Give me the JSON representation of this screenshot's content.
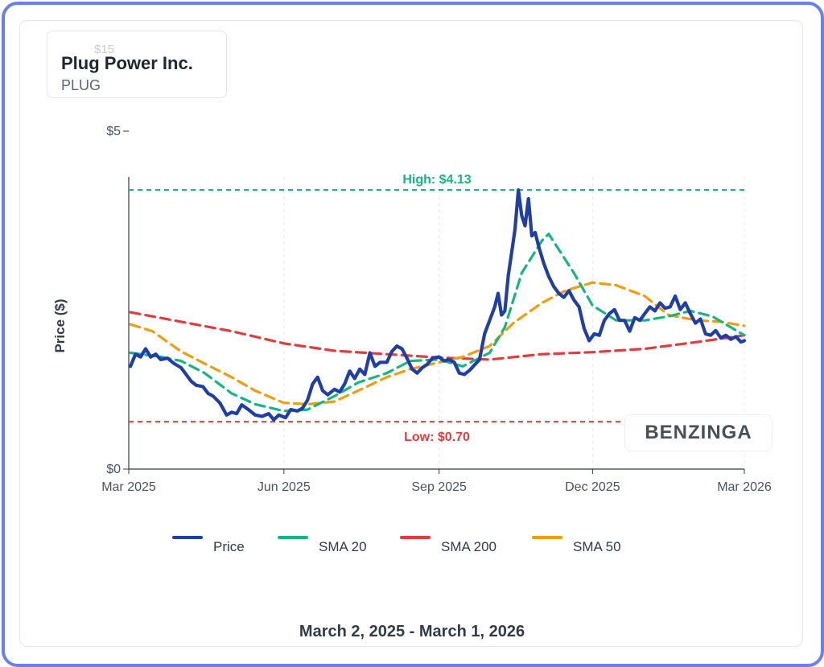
{
  "header": {
    "company": "Plug Power Inc.",
    "ticker": "PLUG",
    "ghost_label": "$15"
  },
  "watermark": "BENZINGA",
  "date_range": "March 2, 2025 - March 1, 2026",
  "colors": {
    "price": "#1f3ea8",
    "sma20": "#14b87e",
    "sma200": "#e43c3c",
    "sma50": "#f29d0c",
    "high": "#14b87e",
    "low": "#e43c3c",
    "frame": "#6b7ff0"
  },
  "chart_data": {
    "type": "line",
    "ylabel": "Price ($)",
    "ylim": [
      0,
      5
    ],
    "y_ticks": [
      {
        "value": 0,
        "label": "$0"
      },
      {
        "value": 5,
        "label": "$5"
      }
    ],
    "x_ticks": [
      {
        "date": "2025-03-01",
        "label": "Mar 2025"
      },
      {
        "date": "2025-06-01",
        "label": "Jun 2025"
      },
      {
        "date": "2025-09-01",
        "label": "Sep 2025"
      },
      {
        "date": "2025-12-01",
        "label": "Dec 2025"
      },
      {
        "date": "2026-03-01",
        "label": "Mar 2026"
      }
    ],
    "grid": true,
    "legend_position": "bottom",
    "annotations": {
      "high": {
        "value": 4.13,
        "label": "High: $4.13"
      },
      "low": {
        "value": 0.7,
        "label": "Low: $0.70"
      }
    },
    "series": [
      {
        "name": "Price",
        "key": "price",
        "dashed": false,
        "points": [
          [
            "2025-03-02",
            1.52
          ],
          [
            "2025-03-05",
            1.7
          ],
          [
            "2025-03-08",
            1.66
          ],
          [
            "2025-03-11",
            1.78
          ],
          [
            "2025-03-14",
            1.66
          ],
          [
            "2025-03-17",
            1.7
          ],
          [
            "2025-03-20",
            1.62
          ],
          [
            "2025-03-24",
            1.64
          ],
          [
            "2025-03-28",
            1.56
          ],
          [
            "2025-04-01",
            1.5
          ],
          [
            "2025-04-04",
            1.4
          ],
          [
            "2025-04-07",
            1.3
          ],
          [
            "2025-04-10",
            1.24
          ],
          [
            "2025-04-14",
            1.22
          ],
          [
            "2025-04-17",
            1.12
          ],
          [
            "2025-04-20",
            1.08
          ],
          [
            "2025-04-24",
            0.98
          ],
          [
            "2025-04-28",
            0.8
          ],
          [
            "2025-05-01",
            0.84
          ],
          [
            "2025-05-04",
            0.82
          ],
          [
            "2025-05-07",
            0.95
          ],
          [
            "2025-05-11",
            0.88
          ],
          [
            "2025-05-15",
            0.8
          ],
          [
            "2025-05-19",
            0.78
          ],
          [
            "2025-05-23",
            0.82
          ],
          [
            "2025-05-26",
            0.73
          ],
          [
            "2025-05-29",
            0.8
          ],
          [
            "2025-06-02",
            0.76
          ],
          [
            "2025-06-05",
            0.88
          ],
          [
            "2025-06-09",
            0.86
          ],
          [
            "2025-06-12",
            0.9
          ],
          [
            "2025-06-15",
            1.02
          ],
          [
            "2025-06-18",
            1.26
          ],
          [
            "2025-06-21",
            1.36
          ],
          [
            "2025-06-24",
            1.16
          ],
          [
            "2025-06-27",
            1.1
          ],
          [
            "2025-07-01",
            1.18
          ],
          [
            "2025-07-04",
            1.14
          ],
          [
            "2025-07-07",
            1.26
          ],
          [
            "2025-07-10",
            1.45
          ],
          [
            "2025-07-13",
            1.34
          ],
          [
            "2025-07-16",
            1.48
          ],
          [
            "2025-07-19",
            1.4
          ],
          [
            "2025-07-22",
            1.72
          ],
          [
            "2025-07-25",
            1.52
          ],
          [
            "2025-07-28",
            1.58
          ],
          [
            "2025-08-01",
            1.58
          ],
          [
            "2025-08-04",
            1.74
          ],
          [
            "2025-08-07",
            1.82
          ],
          [
            "2025-08-10",
            1.78
          ],
          [
            "2025-08-13",
            1.64
          ],
          [
            "2025-08-16",
            1.48
          ],
          [
            "2025-08-19",
            1.42
          ],
          [
            "2025-08-22",
            1.5
          ],
          [
            "2025-08-25",
            1.55
          ],
          [
            "2025-08-28",
            1.64
          ],
          [
            "2025-09-01",
            1.66
          ],
          [
            "2025-09-04",
            1.6
          ],
          [
            "2025-09-07",
            1.62
          ],
          [
            "2025-09-10",
            1.58
          ],
          [
            "2025-09-13",
            1.42
          ],
          [
            "2025-09-16",
            1.4
          ],
          [
            "2025-09-19",
            1.46
          ],
          [
            "2025-09-22",
            1.54
          ],
          [
            "2025-09-25",
            1.62
          ],
          [
            "2025-09-28",
            2.0
          ],
          [
            "2025-10-01",
            2.2
          ],
          [
            "2025-10-04",
            2.4
          ],
          [
            "2025-10-06",
            2.6
          ],
          [
            "2025-10-08",
            2.28
          ],
          [
            "2025-10-10",
            2.34
          ],
          [
            "2025-10-12",
            2.86
          ],
          [
            "2025-10-14",
            3.2
          ],
          [
            "2025-10-16",
            3.55
          ],
          [
            "2025-10-18",
            4.13
          ],
          [
            "2025-10-20",
            3.75
          ],
          [
            "2025-10-22",
            3.6
          ],
          [
            "2025-10-24",
            4.0
          ],
          [
            "2025-10-26",
            3.45
          ],
          [
            "2025-10-28",
            3.5
          ],
          [
            "2025-10-30",
            3.3
          ],
          [
            "2025-11-02",
            3.05
          ],
          [
            "2025-11-05",
            2.85
          ],
          [
            "2025-11-08",
            2.7
          ],
          [
            "2025-11-11",
            2.6
          ],
          [
            "2025-11-14",
            2.54
          ],
          [
            "2025-11-17",
            2.64
          ],
          [
            "2025-11-20",
            2.5
          ],
          [
            "2025-11-23",
            2.4
          ],
          [
            "2025-11-26",
            2.08
          ],
          [
            "2025-11-29",
            1.9
          ],
          [
            "2025-12-02",
            2.0
          ],
          [
            "2025-12-05",
            1.98
          ],
          [
            "2025-12-08",
            2.2
          ],
          [
            "2025-12-11",
            2.3
          ],
          [
            "2025-12-14",
            2.36
          ],
          [
            "2025-12-17",
            2.2
          ],
          [
            "2025-12-20",
            2.2
          ],
          [
            "2025-12-23",
            2.04
          ],
          [
            "2025-12-26",
            2.24
          ],
          [
            "2025-12-29",
            2.2
          ],
          [
            "2026-01-01",
            2.3
          ],
          [
            "2026-01-04",
            2.4
          ],
          [
            "2026-01-07",
            2.34
          ],
          [
            "2026-01-10",
            2.46
          ],
          [
            "2026-01-13",
            2.38
          ],
          [
            "2026-01-16",
            2.4
          ],
          [
            "2026-01-19",
            2.56
          ],
          [
            "2026-01-22",
            2.36
          ],
          [
            "2026-01-25",
            2.46
          ],
          [
            "2026-01-28",
            2.3
          ],
          [
            "2026-01-31",
            2.16
          ],
          [
            "2026-02-03",
            2.22
          ],
          [
            "2026-02-06",
            2.0
          ],
          [
            "2026-02-09",
            1.98
          ],
          [
            "2026-02-12",
            2.05
          ],
          [
            "2026-02-15",
            1.94
          ],
          [
            "2026-02-18",
            1.98
          ],
          [
            "2026-02-21",
            1.92
          ],
          [
            "2026-02-24",
            1.96
          ],
          [
            "2026-02-27",
            1.88
          ],
          [
            "2026-03-01",
            1.9
          ]
        ]
      },
      {
        "name": "SMA 20",
        "key": "sma20",
        "dashed": true,
        "points": [
          [
            "2025-03-02",
            1.72
          ],
          [
            "2025-03-20",
            1.66
          ],
          [
            "2025-04-01",
            1.6
          ],
          [
            "2025-04-15",
            1.42
          ],
          [
            "2025-05-01",
            1.12
          ],
          [
            "2025-05-15",
            0.96
          ],
          [
            "2025-06-01",
            0.86
          ],
          [
            "2025-06-15",
            0.88
          ],
          [
            "2025-07-01",
            1.08
          ],
          [
            "2025-07-15",
            1.28
          ],
          [
            "2025-08-01",
            1.42
          ],
          [
            "2025-08-15",
            1.6
          ],
          [
            "2025-09-01",
            1.62
          ],
          [
            "2025-09-15",
            1.52
          ],
          [
            "2025-10-01",
            1.72
          ],
          [
            "2025-10-10",
            2.1
          ],
          [
            "2025-10-20",
            2.9
          ],
          [
            "2025-11-01",
            3.38
          ],
          [
            "2025-11-05",
            3.48
          ],
          [
            "2025-11-20",
            2.9
          ],
          [
            "2025-12-01",
            2.42
          ],
          [
            "2025-12-15",
            2.2
          ],
          [
            "2026-01-01",
            2.2
          ],
          [
            "2026-01-15",
            2.26
          ],
          [
            "2026-01-28",
            2.34
          ],
          [
            "2026-02-10",
            2.26
          ],
          [
            "2026-03-01",
            1.98
          ]
        ]
      },
      {
        "name": "SMA 200",
        "key": "sma200",
        "dashed": true,
        "points": [
          [
            "2025-03-02",
            2.32
          ],
          [
            "2025-04-01",
            2.18
          ],
          [
            "2025-05-01",
            2.04
          ],
          [
            "2025-06-01",
            1.86
          ],
          [
            "2025-07-01",
            1.75
          ],
          [
            "2025-08-01",
            1.7
          ],
          [
            "2025-09-01",
            1.65
          ],
          [
            "2025-10-01",
            1.62
          ],
          [
            "2025-11-01",
            1.7
          ],
          [
            "2025-12-01",
            1.73
          ],
          [
            "2026-01-01",
            1.78
          ],
          [
            "2026-02-01",
            1.88
          ],
          [
            "2026-03-01",
            1.98
          ]
        ]
      },
      {
        "name": "SMA 50",
        "key": "sma50",
        "dashed": true,
        "points": [
          [
            "2025-03-02",
            2.14
          ],
          [
            "2025-03-15",
            2.04
          ],
          [
            "2025-04-01",
            1.74
          ],
          [
            "2025-04-15",
            1.56
          ],
          [
            "2025-05-01",
            1.36
          ],
          [
            "2025-05-15",
            1.16
          ],
          [
            "2025-06-01",
            0.98
          ],
          [
            "2025-06-15",
            0.96
          ],
          [
            "2025-07-01",
            1.0
          ],
          [
            "2025-07-15",
            1.16
          ],
          [
            "2025-08-01",
            1.36
          ],
          [
            "2025-08-15",
            1.48
          ],
          [
            "2025-09-01",
            1.58
          ],
          [
            "2025-09-15",
            1.66
          ],
          [
            "2025-10-01",
            1.82
          ],
          [
            "2025-10-15",
            2.16
          ],
          [
            "2025-11-01",
            2.46
          ],
          [
            "2025-11-15",
            2.64
          ],
          [
            "2025-12-01",
            2.76
          ],
          [
            "2025-12-15",
            2.72
          ],
          [
            "2026-01-01",
            2.56
          ],
          [
            "2026-01-15",
            2.28
          ],
          [
            "2026-02-01",
            2.2
          ],
          [
            "2026-02-15",
            2.18
          ],
          [
            "2026-03-01",
            2.12
          ]
        ]
      }
    ]
  }
}
